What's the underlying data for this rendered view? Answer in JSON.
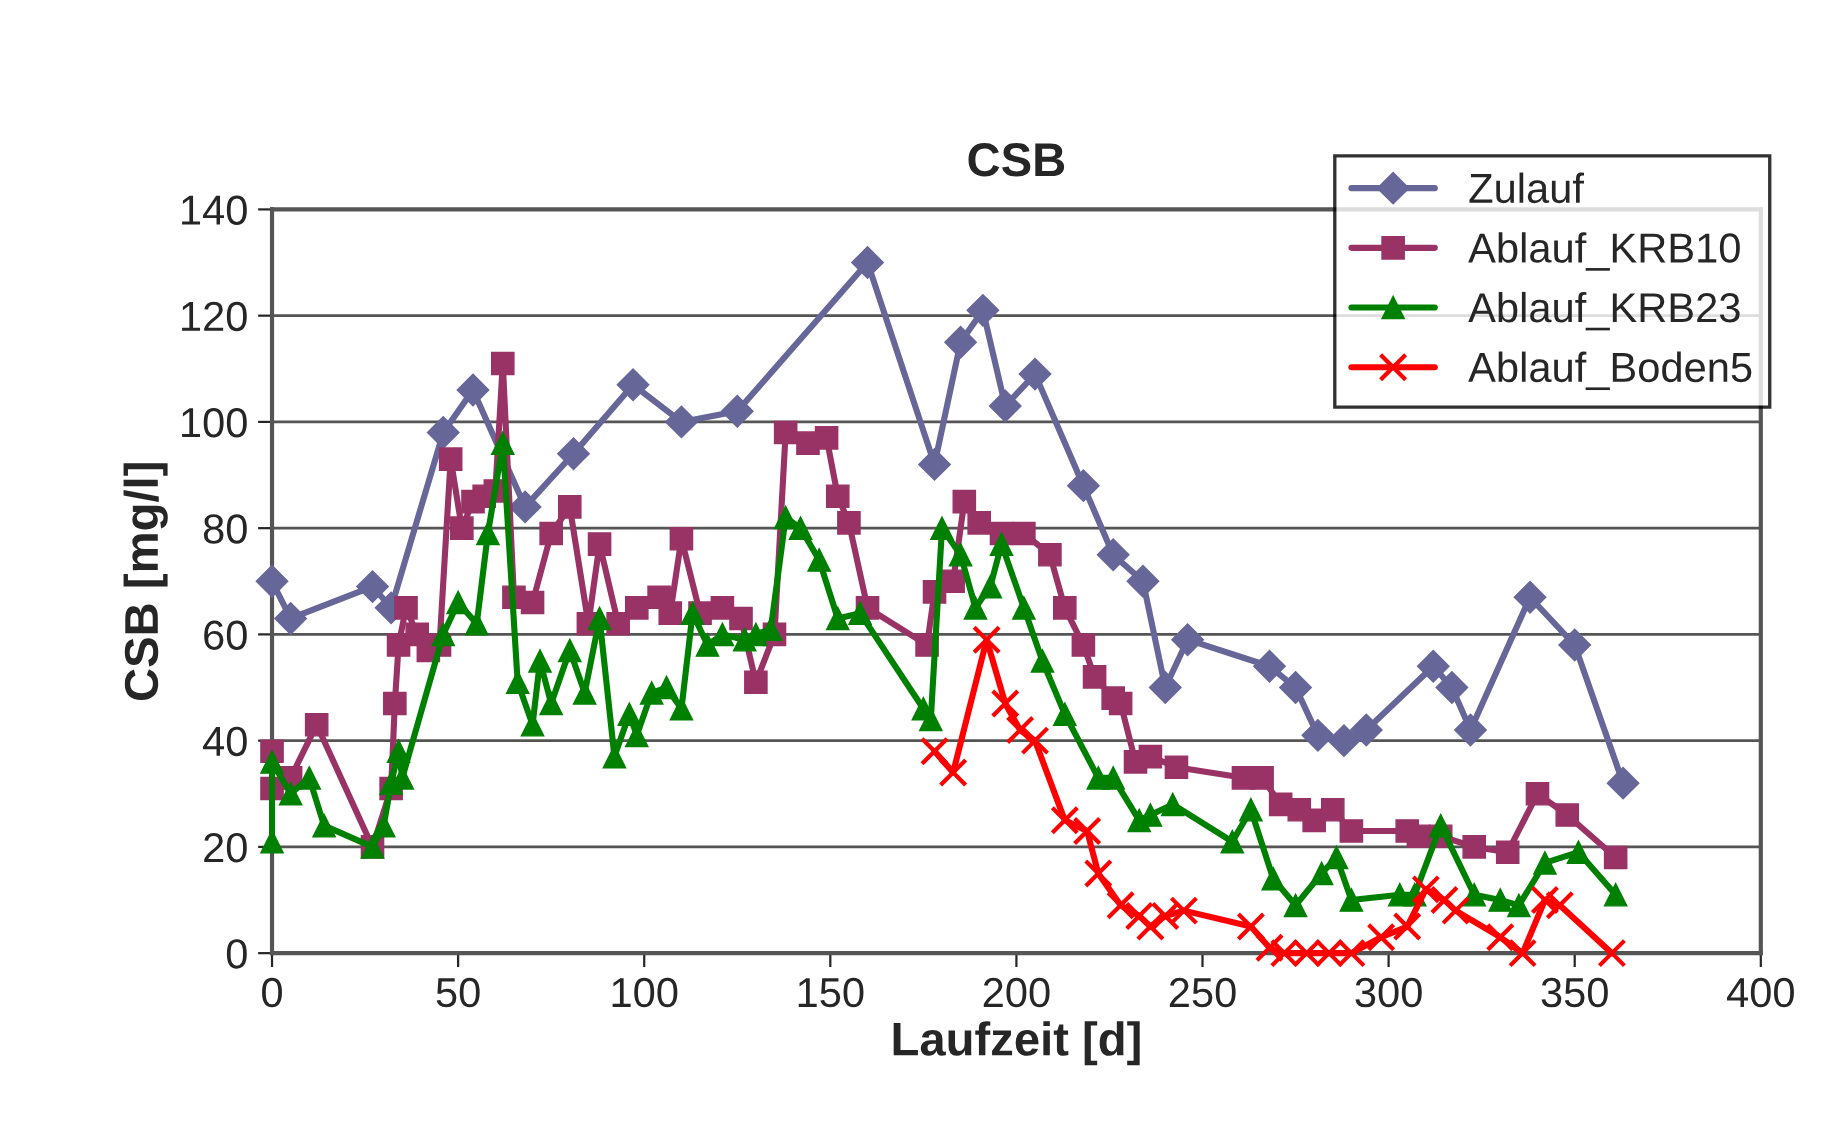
{
  "chart_data": {
    "type": "line",
    "title": "CSB",
    "xlabel": "Laufzeit [d]",
    "ylabel": "CSB [mg/l]",
    "xlim": [
      0,
      400
    ],
    "xticks": [
      0,
      50,
      100,
      150,
      200,
      250,
      300,
      350,
      400
    ],
    "ylim": [
      0,
      140
    ],
    "yticks": [
      0,
      20,
      40,
      60,
      80,
      100,
      120,
      140
    ],
    "grid": "y",
    "legend": "top right",
    "series": [
      {
        "name": "Zulauf",
        "color": "#666699",
        "marker": "diamond",
        "x": [
          0,
          5,
          27,
          32,
          46,
          54,
          68,
          81,
          97,
          110,
          125,
          160,
          178,
          185,
          191,
          197,
          205,
          218,
          226,
          234,
          240,
          246,
          268,
          275,
          281,
          288,
          294,
          312,
          317,
          322,
          338,
          350,
          363
        ],
        "values": [
          70,
          63,
          69,
          65,
          98,
          106,
          84,
          94,
          107,
          100,
          102,
          130,
          92,
          115,
          121,
          103,
          109,
          88,
          75,
          70,
          50,
          59,
          54,
          50,
          41,
          40,
          42,
          54,
          50,
          42,
          67,
          58,
          32
        ]
      },
      {
        "name": "Ablauf_KRB10",
        "color": "#993366",
        "marker": "square",
        "x": [
          0,
          0,
          5,
          12,
          27,
          32,
          33,
          34,
          36,
          39,
          42,
          45,
          48,
          51,
          54,
          57,
          60,
          62,
          65,
          70,
          75,
          80,
          85,
          88,
          93,
          98,
          104,
          107,
          110,
          115,
          121,
          126,
          130,
          135,
          138,
          144,
          149,
          152,
          155,
          160,
          176,
          178,
          183,
          186,
          190,
          196,
          202,
          209,
          213,
          218,
          221,
          226,
          228,
          232,
          236,
          243,
          261,
          266,
          271,
          276,
          280,
          285,
          290,
          305,
          308,
          314,
          323,
          332,
          340,
          348,
          361
        ],
        "values": [
          38,
          31,
          33,
          43,
          20,
          31,
          47,
          58,
          65,
          60,
          57,
          58,
          93,
          80,
          85,
          86,
          87,
          111,
          67,
          66,
          79,
          84,
          62,
          77,
          62,
          65,
          67,
          64,
          78,
          64,
          65,
          63,
          51,
          60,
          98,
          96,
          97,
          86,
          81,
          65,
          58,
          68,
          70,
          85,
          81,
          79,
          79,
          75,
          65,
          58,
          52,
          48,
          47,
          36,
          37,
          35,
          33,
          33,
          28,
          27,
          25,
          27,
          23,
          23,
          22,
          22,
          20,
          19,
          30,
          26,
          18
        ]
      },
      {
        "name": "Ablauf_KRB23",
        "color": "#008000",
        "marker": "triangle",
        "x": [
          0,
          0,
          5,
          10,
          14,
          27,
          30,
          32,
          34,
          35,
          46,
          50,
          55,
          58,
          62,
          66,
          70,
          72,
          75,
          80,
          84,
          88,
          92,
          96,
          98,
          102,
          106,
          110,
          113,
          117,
          121,
          127,
          130,
          134,
          138,
          142,
          147,
          152,
          158,
          175,
          177,
          180,
          185,
          189,
          193,
          196,
          202,
          207,
          213,
          222,
          226,
          233,
          236,
          242,
          258,
          263,
          269,
          275,
          282,
          286,
          290,
          303,
          307,
          314,
          323,
          330,
          335,
          342,
          351,
          361
        ],
        "values": [
          21,
          36,
          30,
          33,
          24,
          20,
          24,
          32,
          38,
          33,
          60,
          66,
          62,
          79,
          96,
          51,
          43,
          55,
          47,
          57,
          49,
          63,
          37,
          45,
          41,
          49,
          50,
          46,
          64,
          58,
          60,
          59,
          60,
          61,
          82,
          80,
          74,
          63,
          64,
          46,
          44,
          80,
          75,
          65,
          69,
          77,
          65,
          55,
          45,
          33,
          33,
          25,
          26,
          28,
          21,
          27,
          14,
          9,
          15,
          18,
          10,
          11,
          11,
          24,
          11,
          10,
          9,
          17,
          19,
          11
        ]
      },
      {
        "name": "Ablauf_Boden5",
        "color": "#ff0000",
        "marker": "cross",
        "x": [
          178,
          183,
          192,
          197,
          201,
          205,
          213,
          219,
          222,
          228,
          233,
          236,
          240,
          245,
          263,
          268,
          272,
          278,
          284,
          290,
          298,
          305,
          310,
          315,
          318,
          330,
          336,
          342,
          346,
          360
        ],
        "values": [
          38,
          34,
          59,
          47,
          42,
          40,
          25,
          23,
          15,
          9,
          7,
          5,
          7,
          8,
          5,
          1,
          0,
          0,
          0,
          0,
          3,
          5,
          12,
          10,
          8,
          3,
          0,
          10,
          9,
          0
        ]
      }
    ]
  }
}
